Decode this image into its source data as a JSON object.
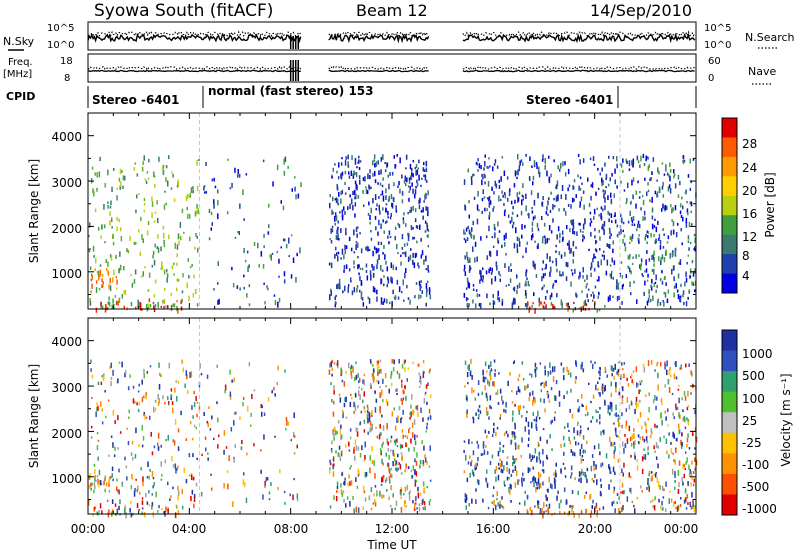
{
  "header": {
    "station": "Syowa South (fitACF)",
    "beam": "Beam 12",
    "date": "14/Sep/2010"
  },
  "top_panels": {
    "nsky_label": "N.Sky",
    "freq_label": "Freq.",
    "freq_unit": "[MHz]",
    "nsearch_label": "N.Search",
    "nave_label": "Nave",
    "cpid_label": "CPID",
    "noise_left_ticks": [
      "10^5",
      "10^0"
    ],
    "noise_right_ticks": [
      "10^5",
      "10^0"
    ],
    "freq_left_ticks": [
      "18",
      "8"
    ],
    "freq_right_ticks": [
      "60",
      "0"
    ],
    "cpid_segments": [
      {
        "label": "Stereo -6401",
        "start_h": 0.0,
        "end_h": 4.4
      },
      {
        "label": "normal (fast stereo) 153",
        "start_h": 4.4,
        "end_h": 21.0
      },
      {
        "label": "Stereo -6401",
        "start_h": 21.0,
        "end_h": 24.0
      }
    ]
  },
  "x_axis": {
    "label": "Time UT",
    "ticks": [
      "00:00",
      "04:00",
      "08:00",
      "12:00",
      "16:00",
      "20:00",
      "00:00"
    ]
  },
  "panels": [
    {
      "ylabel": "Slant Range [km]",
      "yticks": [
        "1000",
        "2000",
        "3000",
        "4000"
      ],
      "colorbar_label": "Power [dB]",
      "colorbar_ticks": [
        "28",
        "24",
        "20",
        "16",
        "12",
        "8",
        "4"
      ],
      "colorbar_colors": [
        "#e00000",
        "#ff5a00",
        "#ff9a00",
        "#ffd000",
        "#b8d010",
        "#40a040",
        "#3a7a70",
        "#2040b0",
        "#0000e0"
      ]
    },
    {
      "ylabel": "Slant Range [km]",
      "yticks": [
        "1000",
        "2000",
        "3000",
        "4000"
      ],
      "colorbar_label": "Velocity [m s⁻¹]",
      "colorbar_ticks": [
        "1000",
        "500",
        "100",
        "25",
        "-25",
        "-100",
        "-500",
        "-1000"
      ],
      "colorbar_colors": [
        "#2030a0",
        "#3050c0",
        "#30a070",
        "#50c030",
        "#c0c0c0",
        "#ffc000",
        "#ff9000",
        "#ff5000",
        "#e00000"
      ]
    }
  ],
  "chart_data": {
    "type": "heatmap",
    "x_units": "hours UT",
    "xlim": [
      0,
      24
    ],
    "ylim_km": [
      180,
      4500
    ],
    "data_gaps_h": [
      [
        8.4,
        9.5
      ],
      [
        13.5,
        14.8
      ]
    ],
    "clusters": [
      {
        "t0": 0.0,
        "t1": 4.4,
        "r0": 200,
        "r1": 3600,
        "density": 0.25,
        "power": "green",
        "velocity": "mixed"
      },
      {
        "t0": 0.0,
        "t1": 1.2,
        "r0": 700,
        "r1": 1100,
        "density": 0.7,
        "power": "orange-red",
        "velocity": "mixed"
      },
      {
        "t0": 0.0,
        "t1": 3.8,
        "r0": 180,
        "r1": 420,
        "density": 0.6,
        "power": "red",
        "velocity": "mixed"
      },
      {
        "t0": 4.4,
        "t1": 8.4,
        "r0": 300,
        "r1": 3600,
        "density": 0.12,
        "power": "blue-green",
        "velocity": "mixed"
      },
      {
        "t0": 9.5,
        "t1": 13.5,
        "r0": 300,
        "r1": 3600,
        "density": 0.55,
        "power": "blue",
        "velocity": "mixed"
      },
      {
        "t0": 14.8,
        "t1": 21.0,
        "r0": 300,
        "r1": 3600,
        "density": 0.45,
        "power": "blue",
        "velocity": "blue"
      },
      {
        "t0": 17.3,
        "t1": 20.4,
        "r0": 180,
        "r1": 360,
        "density": 0.9,
        "power": "red",
        "velocity": "orange"
      },
      {
        "t0": 21.0,
        "t1": 24.0,
        "r0": 300,
        "r1": 3600,
        "density": 0.5,
        "power": "blue-green",
        "velocity": "mixed"
      }
    ]
  }
}
